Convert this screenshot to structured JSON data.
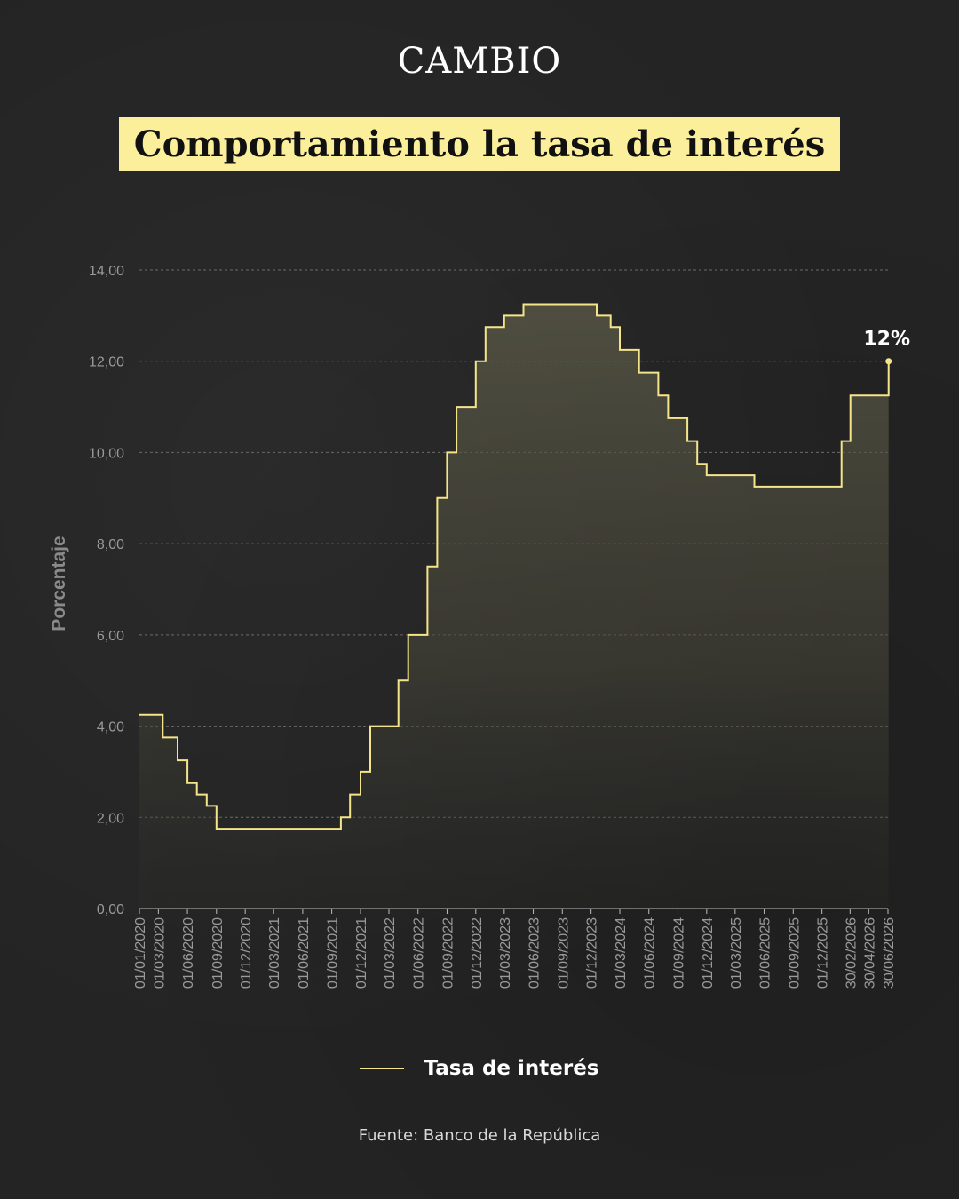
{
  "brand": "CAMBIO",
  "title": "Comportamiento la tasa de interés",
  "legend_label": "Tasa de interés",
  "source": "Fuente: Banco de la República",
  "colors": {
    "background": "#242424",
    "title_bg": "#fbef9c",
    "line": "#f5e58a",
    "grid": "#6b6b6b",
    "axis_text": "#9a9a9a"
  },
  "chart_data": {
    "type": "line",
    "step": true,
    "ylabel": "Porcentaje",
    "ylim": [
      0,
      14
    ],
    "yticks": [
      "0,00",
      "2,00",
      "4,00",
      "6,00",
      "8,00",
      "10,00",
      "12,00",
      "14,00"
    ],
    "xticks": [
      "01/01/2020",
      "01/03/2020",
      "01/06/2020",
      "01/09/2020",
      "01/12/2020",
      "01/03/2021",
      "01/06/2021",
      "01/09/2021",
      "01/12/2021",
      "01/03/2022",
      "01/06/2022",
      "01/09/2022",
      "01/12/2022",
      "01/03/2023",
      "01/06/2023",
      "01/09/2023",
      "01/12/2023",
      "01/03/2024",
      "01/06/2024",
      "01/09/2024",
      "01/12/2024",
      "01/03/2025",
      "01/06/2025",
      "01/09/2025",
      "01/12/2025",
      "30/02/2026",
      "30/04/2026",
      "30/06/2026"
    ],
    "grid": true,
    "area_fill": true,
    "annotation": "12%",
    "series": [
      {
        "name": "Tasa de interés",
        "points": [
          [
            "2020-01-01",
            4.25
          ],
          [
            "2020-03-15",
            3.75
          ],
          [
            "2020-05-01",
            3.25
          ],
          [
            "2020-06-01",
            2.75
          ],
          [
            "2020-07-01",
            2.5
          ],
          [
            "2020-08-01",
            2.25
          ],
          [
            "2020-09-01",
            1.75
          ],
          [
            "2021-09-30",
            2.0
          ],
          [
            "2021-10-29",
            2.5
          ],
          [
            "2021-12-01",
            3.0
          ],
          [
            "2022-01-01",
            4.0
          ],
          [
            "2022-03-31",
            5.0
          ],
          [
            "2022-05-01",
            6.0
          ],
          [
            "2022-07-01",
            7.5
          ],
          [
            "2022-08-01",
            9.0
          ],
          [
            "2022-09-01",
            10.0
          ],
          [
            "2022-10-01",
            11.0
          ],
          [
            "2022-12-01",
            12.0
          ],
          [
            "2023-01-01",
            12.75
          ],
          [
            "2023-03-01",
            13.0
          ],
          [
            "2023-05-01",
            13.25
          ],
          [
            "2023-12-19",
            13.0
          ],
          [
            "2024-02-01",
            12.75
          ],
          [
            "2024-03-01",
            12.25
          ],
          [
            "2024-05-01",
            11.75
          ],
          [
            "2024-07-01",
            11.25
          ],
          [
            "2024-08-01",
            10.75
          ],
          [
            "2024-10-01",
            10.25
          ],
          [
            "2024-11-01",
            9.75
          ],
          [
            "2024-12-01",
            9.5
          ],
          [
            "2025-05-01",
            9.25
          ],
          [
            "2026-02-01",
            10.25
          ],
          [
            "2026-03-01",
            11.25
          ],
          [
            "2026-06-29",
            11.25
          ],
          [
            "2026-06-30",
            12.0
          ]
        ]
      }
    ]
  }
}
